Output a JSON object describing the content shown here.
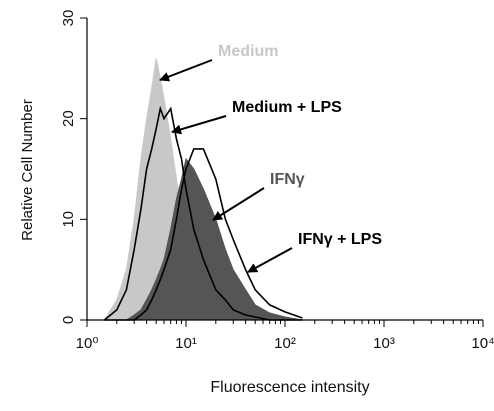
{
  "chart_data": {
    "type": "area",
    "x_label": "Fluorescence intensity",
    "y_label": "Relative Cell Number",
    "xscale": "log",
    "xlim": [
      1,
      10000
    ],
    "xticks": [
      {
        "value": 1,
        "label": "10⁰"
      },
      {
        "value": 10,
        "label": "10¹"
      },
      {
        "value": 100,
        "label": "10²"
      },
      {
        "value": 1000,
        "label": "10³"
      },
      {
        "value": 10000,
        "label": "10⁴"
      }
    ],
    "ylim": [
      0,
      30
    ],
    "yticks": [
      0,
      10,
      20,
      30
    ],
    "x": [
      1.5,
      2,
      2.5,
      3,
      3.5,
      4,
      4.5,
      5,
      5.5,
      6,
      7,
      8,
      9,
      10,
      12,
      15,
      20,
      25,
      30,
      40,
      50,
      70,
      100,
      150
    ],
    "series": [
      {
        "name": "Medium",
        "color": "#c8c8c8",
        "filled": true,
        "values": [
          0,
          2,
          5,
          10,
          16,
          20,
          23,
          26,
          24,
          22,
          18,
          14,
          11,
          9,
          6,
          4,
          2.5,
          1.5,
          1,
          0.5,
          0.3,
          0,
          0,
          0
        ]
      },
      {
        "name": "IFNγ",
        "color": "#555555",
        "filled": true,
        "values": [
          0,
          0,
          0,
          0.5,
          1,
          2,
          3,
          4,
          5,
          6,
          9,
          12,
          14,
          16,
          15,
          13,
          10,
          7,
          5,
          3,
          1.5,
          0.7,
          0.3,
          0
        ]
      },
      {
        "name": "Medium + LPS",
        "color": "#000000",
        "filled": false,
        "values": [
          0,
          1,
          3,
          7,
          11,
          15,
          17,
          19,
          21,
          20,
          21,
          18,
          16,
          13,
          9,
          6,
          3,
          2,
          1,
          0.5,
          0.3,
          0,
          0,
          0
        ]
      },
      {
        "name": "IFNγ + LPS",
        "color": "#000000",
        "filled": false,
        "values": [
          0,
          0,
          0,
          0,
          0.5,
          1,
          2,
          3,
          4,
          5,
          7,
          10,
          13,
          15,
          17,
          17,
          14,
          10,
          8,
          5,
          3,
          1.5,
          0.8,
          0.2
        ]
      }
    ]
  }
}
